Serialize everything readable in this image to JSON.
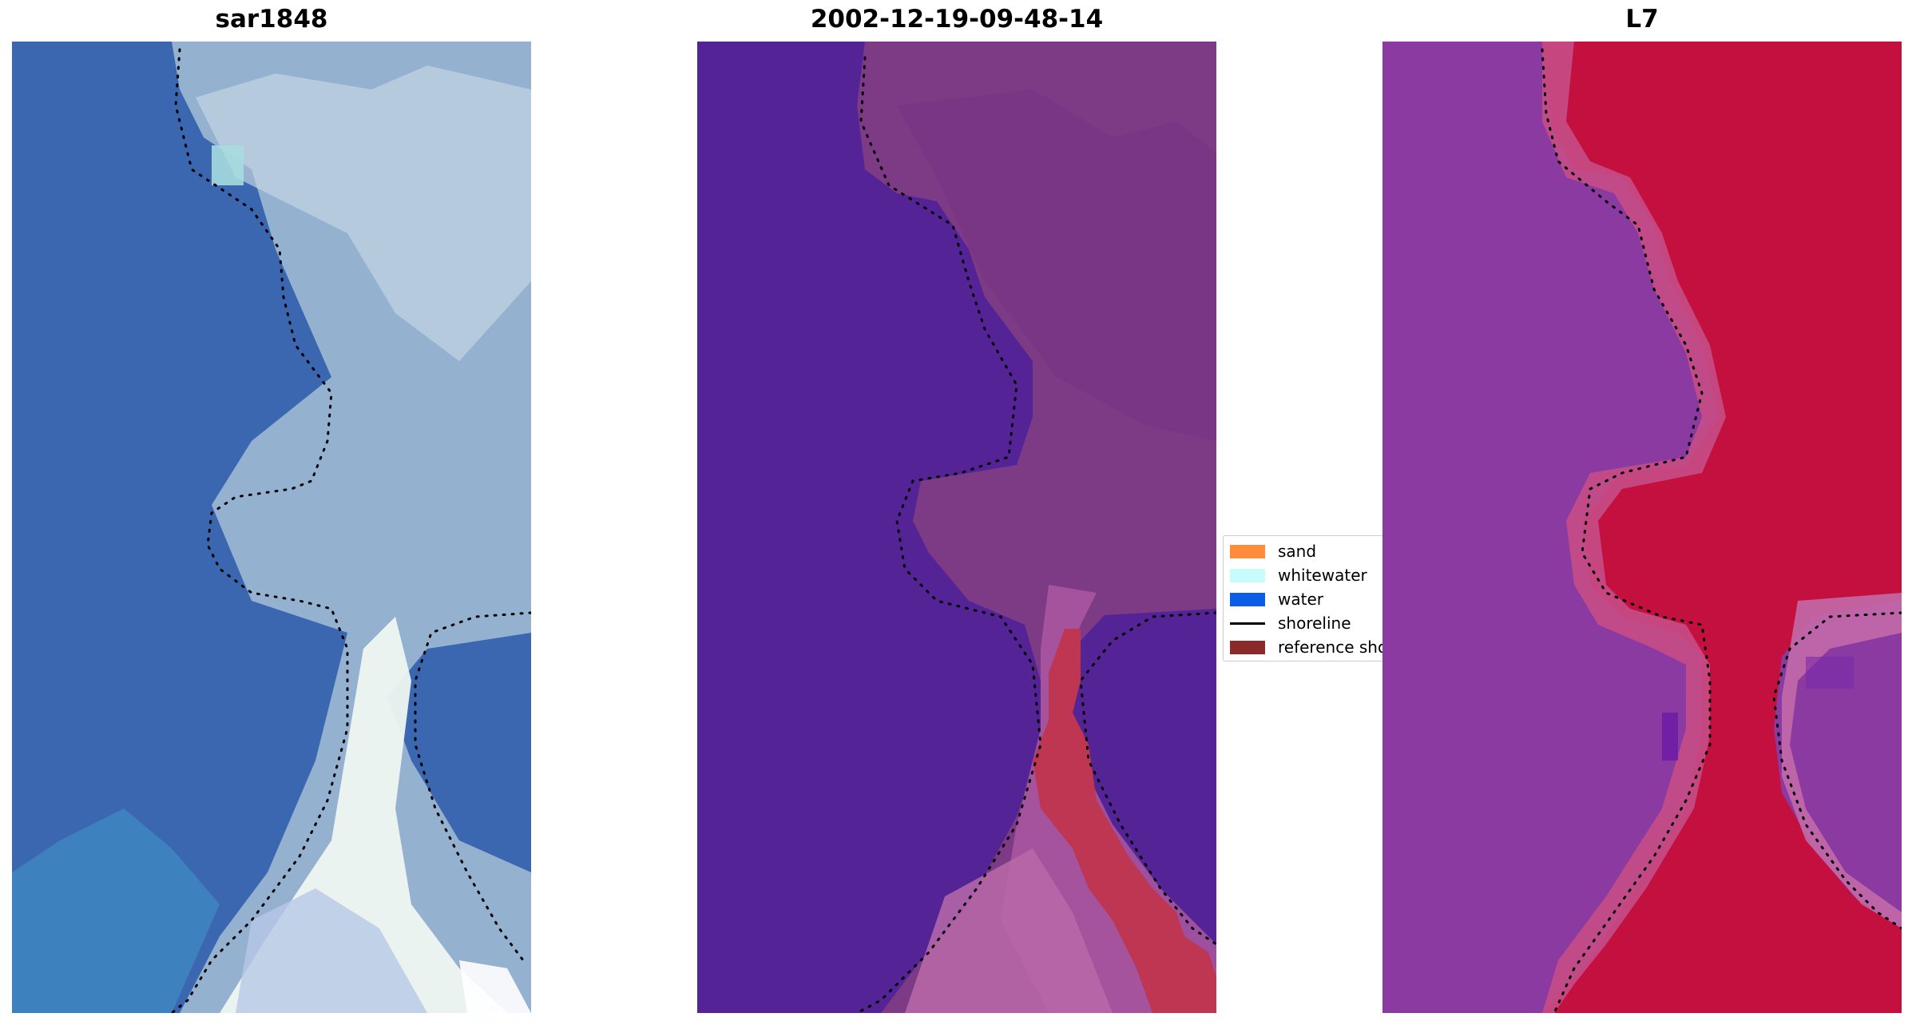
{
  "panels": [
    {
      "id": "rgb",
      "title": "sar1848"
    },
    {
      "id": "class",
      "title": "2002-12-19-09-48-14"
    },
    {
      "id": "index",
      "title": "L7"
    }
  ],
  "legend": {
    "items": [
      {
        "label": "sand",
        "kind": "patch",
        "color": "#ff8c3a"
      },
      {
        "label": "whitewater",
        "kind": "patch",
        "color": "#c8fcfc"
      },
      {
        "label": "water",
        "kind": "patch",
        "color": "#0b5ce6"
      },
      {
        "label": "shoreline",
        "kind": "line",
        "color": "#000000"
      },
      {
        "label": "reference shoreline",
        "kind": "patch",
        "color": "#8b2a2a"
      }
    ]
  },
  "colors": {
    "water_rgb": "#3a67b0",
    "whitewater_rgb": "#dbe9ef",
    "class_water": "#542396",
    "class_land": "#7d3a85",
    "class_sand": "#be3652",
    "index_water": "#8a3aa0",
    "index_land": "#c3103e"
  }
}
